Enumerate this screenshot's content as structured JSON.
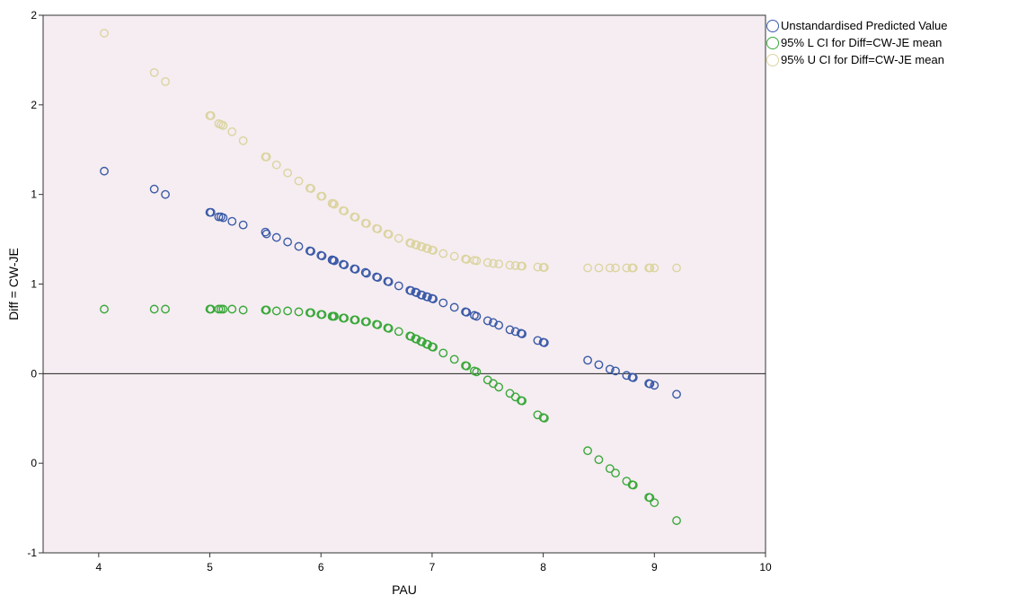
{
  "chart_data": {
    "type": "scatter",
    "xlabel": "PAU",
    "ylabel": "Diff = CW-JE",
    "xlim": [
      3.5,
      10
    ],
    "ylim": [
      -1,
      2
    ],
    "x_ticks": [
      "4",
      "5",
      "6",
      "7",
      "8",
      "9",
      "10"
    ],
    "x_tick_values": [
      4,
      5,
      6,
      7,
      8,
      9,
      10
    ],
    "y_ticks": [
      "-1",
      "0",
      "0",
      "1",
      "1",
      "2",
      "2"
    ],
    "y_tick_values": [
      -1,
      -0.5,
      0,
      0.5,
      1,
      1.5,
      2
    ],
    "reference_line_y": 0,
    "legend_position": "right",
    "grid": false,
    "background_color": "#f5edf1",
    "x": [
      4.05,
      4.5,
      4.6,
      5.0,
      5.01,
      5.08,
      5.1,
      5.12,
      5.2,
      5.3,
      5.5,
      5.51,
      5.6,
      5.7,
      5.8,
      5.9,
      5.91,
      6.0,
      6.01,
      6.1,
      6.11,
      6.12,
      6.2,
      6.21,
      6.3,
      6.31,
      6.4,
      6.41,
      6.5,
      6.51,
      6.6,
      6.61,
      6.7,
      6.8,
      6.81,
      6.85,
      6.86,
      6.9,
      6.91,
      6.95,
      6.96,
      7.0,
      7.01,
      7.1,
      7.2,
      7.3,
      7.31,
      7.38,
      7.4,
      7.5,
      7.55,
      7.6,
      7.7,
      7.75,
      7.8,
      7.81,
      7.95,
      8.0,
      8.01,
      8.4,
      8.5,
      8.6,
      8.65,
      8.75,
      8.8,
      8.81,
      8.95,
      8.96,
      9.0,
      9.2
    ],
    "series": [
      {
        "name": "Unstandardised Predicted Value",
        "color": "#3b5aa8",
        "values": [
          1.13,
          1.03,
          1.0,
          0.9,
          0.9,
          0.875,
          0.875,
          0.87,
          0.85,
          0.83,
          0.79,
          0.78,
          0.76,
          0.735,
          0.71,
          0.685,
          0.683,
          0.66,
          0.657,
          0.635,
          0.633,
          0.63,
          0.61,
          0.607,
          0.585,
          0.583,
          0.565,
          0.56,
          0.54,
          0.537,
          0.515,
          0.513,
          0.49,
          0.465,
          0.463,
          0.455,
          0.452,
          0.44,
          0.438,
          0.43,
          0.428,
          0.42,
          0.417,
          0.395,
          0.37,
          0.345,
          0.343,
          0.325,
          0.32,
          0.295,
          0.285,
          0.27,
          0.245,
          0.235,
          0.225,
          0.222,
          0.185,
          0.175,
          0.173,
          0.075,
          0.05,
          0.025,
          0.015,
          -0.01,
          -0.02,
          -0.022,
          -0.055,
          -0.057,
          -0.065,
          -0.115
        ]
      },
      {
        "name": "95% L CI for Diff=CW-JE mean",
        "color": "#3aa83a",
        "values": [
          0.36,
          0.36,
          0.36,
          0.36,
          0.36,
          0.36,
          0.36,
          0.36,
          0.36,
          0.355,
          0.355,
          0.355,
          0.35,
          0.35,
          0.345,
          0.34,
          0.34,
          0.33,
          0.33,
          0.32,
          0.32,
          0.32,
          0.31,
          0.31,
          0.3,
          0.3,
          0.29,
          0.29,
          0.275,
          0.273,
          0.255,
          0.253,
          0.235,
          0.21,
          0.208,
          0.195,
          0.193,
          0.18,
          0.178,
          0.165,
          0.163,
          0.15,
          0.148,
          0.115,
          0.08,
          0.045,
          0.043,
          0.015,
          0.01,
          -0.035,
          -0.055,
          -0.075,
          -0.11,
          -0.13,
          -0.15,
          -0.152,
          -0.23,
          -0.245,
          -0.248,
          -0.43,
          -0.48,
          -0.53,
          -0.555,
          -0.6,
          -0.62,
          -0.622,
          -0.69,
          -0.692,
          -0.72,
          -0.82
        ]
      },
      {
        "name": "95% U CI for Diff=CW-JE mean",
        "color": "#dcd4a0",
        "values": [
          1.9,
          1.68,
          1.63,
          1.44,
          1.44,
          1.395,
          1.39,
          1.385,
          1.35,
          1.3,
          1.21,
          1.21,
          1.165,
          1.12,
          1.075,
          1.035,
          1.033,
          0.99,
          0.99,
          0.95,
          0.95,
          0.945,
          0.91,
          0.908,
          0.875,
          0.873,
          0.84,
          0.838,
          0.81,
          0.808,
          0.78,
          0.778,
          0.755,
          0.73,
          0.728,
          0.72,
          0.718,
          0.71,
          0.708,
          0.7,
          0.698,
          0.69,
          0.688,
          0.67,
          0.655,
          0.64,
          0.638,
          0.632,
          0.63,
          0.62,
          0.615,
          0.612,
          0.605,
          0.603,
          0.6,
          0.6,
          0.595,
          0.593,
          0.593,
          0.59,
          0.59,
          0.59,
          0.59,
          0.59,
          0.59,
          0.59,
          0.59,
          0.59,
          0.59,
          0.59
        ]
      }
    ]
  }
}
